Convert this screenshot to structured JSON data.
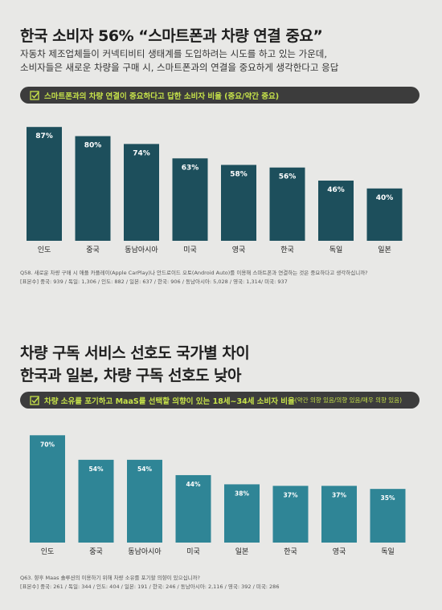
{
  "section1": {
    "title": "한국 소비자 56% “스마트폰과 차량 연결 중요”",
    "subtitle_line1": "자동차 제조업체들이 커넥티비티 생태계를 도입하려는 시도를 하고 있는 가운데,",
    "subtitle_line2": "소비자들은 새로운 차량을 구매 시, 스마트폰과의 연결을 중요하게 생각한다고 응답",
    "pill": "스마트폰과의 차량 연결이 중요하다고 답한 소비자 비율 (중요/약간 중요)",
    "note_line1": "Q58. 새로운 차량 구매 시 애플 카플레이(Apple CarPlay)나 안드로이드 오토(Android Auto)를 이용해 스마트폰과 연결하는 것은 중요하다고 생각하십니까?",
    "note_line2": "[표본수] 중국: 939 / 독일: 1,306 / 인도: 882 / 일본: 637 / 한국: 906 / 동남아시아: 5,028 / 영국: 1,314/ 미국: 937"
  },
  "section2": {
    "title_line1": "차량 구독 서비스 선호도 국가별 차이",
    "title_line2": "한국과 일본, 차량 구독 선호도 낮아",
    "pill": "차량 소유를 포기하고 MaaS를 선택할 의향이 있는 18세~34세 소비자 비율",
    "pill_small": "(약간 의향 있음/의향 있음/매우 의향 있음)",
    "note_line1": "Q63. 향후 Maas 솔루션의 이용하기 위해 차량 소유를 포기할 의향이 있으십니까?",
    "note_line2": "[표본수] 중국: 261 / 독일: 344 / 인도: 404 / 일본: 191 / 한국: 246 / 동남아시아: 2,116 / 영국: 392 / 미국: 286"
  },
  "icons": {
    "pill_icon": "checkbox-icon"
  },
  "colors": {
    "bar1": "#1d4f5c",
    "bar2": "#2f8596",
    "pill_text": "#c7e34a",
    "pill_bg": "#3c3c3c"
  },
  "chart_data": [
    {
      "type": "bar",
      "title": "스마트폰과의 차량 연결이 중요하다고 답한 소비자 비율 (중요/약간 중요)",
      "categories": [
        "인도",
        "중국",
        "동남아시아",
        "미국",
        "영국",
        "한국",
        "독일",
        "일본"
      ],
      "values": [
        87,
        80,
        74,
        63,
        58,
        56,
        46,
        40
      ],
      "value_labels": [
        "87%",
        "80%",
        "74%",
        "63%",
        "58%",
        "56%",
        "46%",
        "40%"
      ],
      "unit": "%",
      "ylim": [
        0,
        100
      ],
      "grid": false,
      "xlabel": "",
      "ylabel": ""
    },
    {
      "type": "bar",
      "title": "차량 소유를 포기하고 MaaS를 선택할 의향이 있는 18세~34세 소비자 비율(약간 의향 있음/의향 있음/매우 의향 있음)",
      "categories": [
        "인도",
        "중국",
        "동남아시아",
        "미국",
        "일본",
        "한국",
        "영국",
        "독일"
      ],
      "values": [
        70,
        54,
        54,
        44,
        38,
        37,
        37,
        35
      ],
      "value_labels": [
        "70%",
        "54%",
        "54%",
        "44%",
        "38%",
        "37%",
        "37%",
        "35%"
      ],
      "unit": "%",
      "ylim": [
        0,
        100
      ],
      "grid": false,
      "xlabel": "",
      "ylabel": ""
    }
  ]
}
